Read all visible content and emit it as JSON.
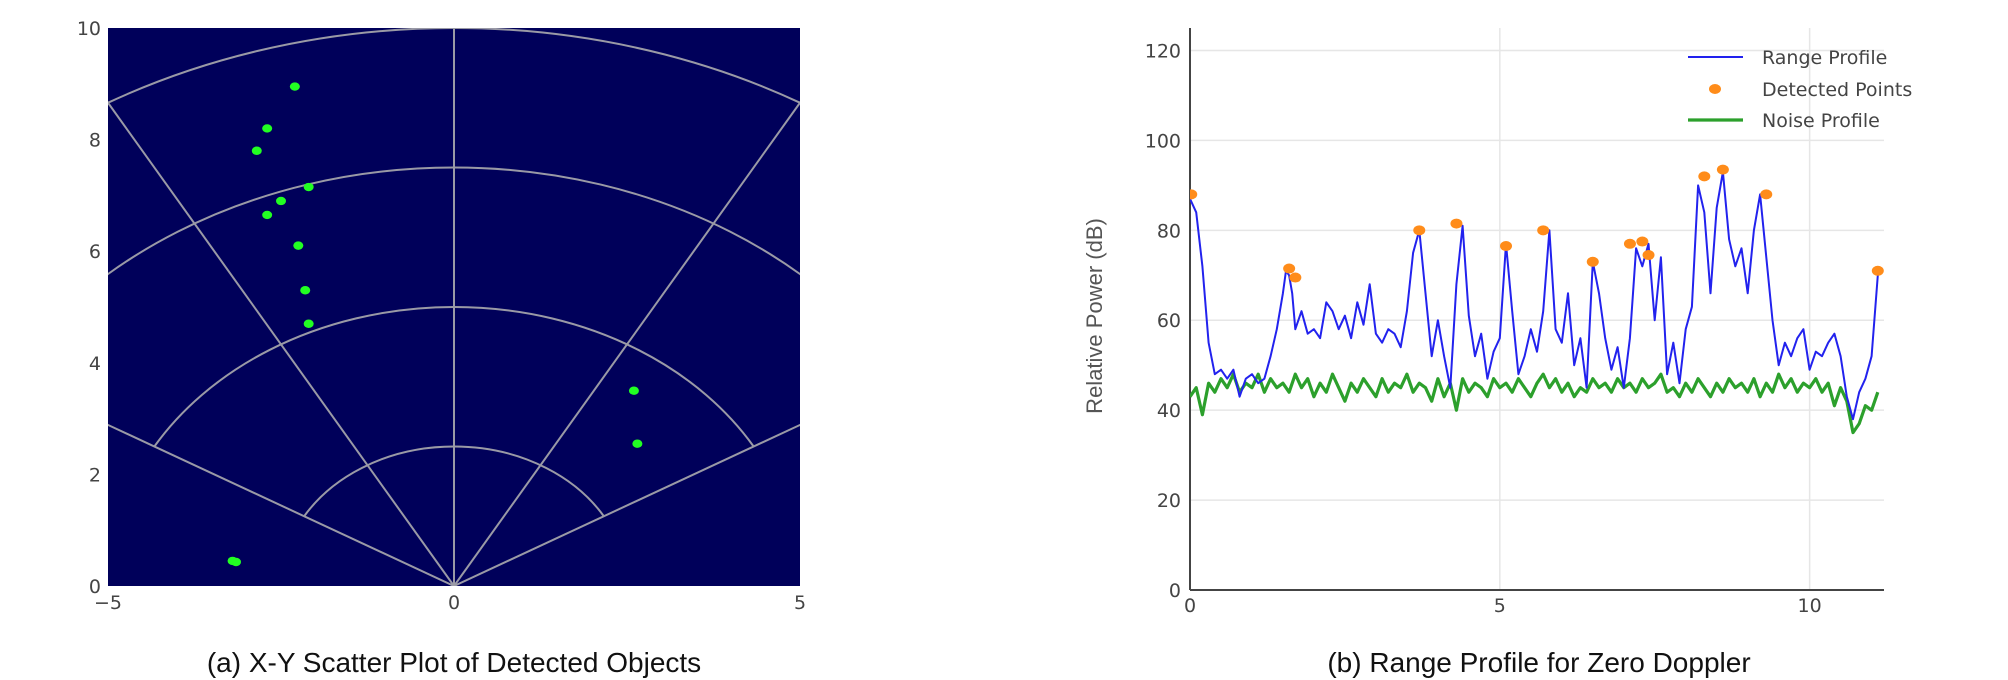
{
  "chart_data": [
    {
      "type": "scatter",
      "subplot": "(a)",
      "caption": "(a) X-Y Scatter Plot of Detected Objects",
      "title": "",
      "xlabel": "",
      "ylabel": "",
      "xlim": [
        -5,
        5
      ],
      "ylim": [
        0,
        10
      ],
      "x_ticks": [
        "−5",
        "0",
        "5"
      ],
      "y_ticks": [
        "0",
        "2",
        "4",
        "6",
        "8",
        "10"
      ],
      "background": "#00005a",
      "grid": "polar range rings and azimuth spokes",
      "range_rings": [
        2.5,
        5,
        7.5,
        10
      ],
      "spoke_angles_deg": [
        -60,
        -30,
        0,
        30,
        60
      ],
      "point_color": "#22ff22",
      "points": [
        {
          "x": -2.3,
          "y": 8.95
        },
        {
          "x": -2.7,
          "y": 8.2
        },
        {
          "x": -2.85,
          "y": 7.8
        },
        {
          "x": -2.1,
          "y": 7.15
        },
        {
          "x": -2.5,
          "y": 6.9
        },
        {
          "x": -2.7,
          "y": 6.65
        },
        {
          "x": -2.25,
          "y": 6.1
        },
        {
          "x": -2.15,
          "y": 5.3
        },
        {
          "x": -2.1,
          "y": 4.7
        },
        {
          "x": 2.6,
          "y": 3.5
        },
        {
          "x": 2.65,
          "y": 2.55
        },
        {
          "x": -3.2,
          "y": 0.45
        },
        {
          "x": -3.15,
          "y": 0.43
        }
      ]
    },
    {
      "type": "line",
      "subplot": "(b)",
      "caption": "(b) Range Profile for Zero Doppler",
      "title": "",
      "xlabel": "",
      "ylabel": "Relative Power (dB)",
      "xlim": [
        0,
        11.2
      ],
      "ylim": [
        0,
        125
      ],
      "x_ticks": [
        0,
        5,
        10
      ],
      "y_ticks": [
        0,
        20,
        40,
        60,
        80,
        100,
        120
      ],
      "grid": true,
      "legend": "top-right",
      "series": [
        {
          "name": "Range Profile",
          "color": "#2222ee",
          "mode": "line",
          "x": [
            0,
            0.1,
            0.2,
            0.3,
            0.4,
            0.5,
            0.6,
            0.7,
            0.8,
            0.9,
            1.0,
            1.1,
            1.2,
            1.3,
            1.4,
            1.5,
            1.55,
            1.6,
            1.65,
            1.7,
            1.8,
            1.9,
            2.0,
            2.1,
            2.2,
            2.3,
            2.4,
            2.5,
            2.6,
            2.7,
            2.8,
            2.9,
            3.0,
            3.1,
            3.2,
            3.3,
            3.4,
            3.5,
            3.6,
            3.7,
            3.8,
            3.9,
            4.0,
            4.1,
            4.2,
            4.3,
            4.4,
            4.5,
            4.6,
            4.7,
            4.8,
            4.9,
            5.0,
            5.1,
            5.2,
            5.3,
            5.4,
            5.5,
            5.6,
            5.7,
            5.8,
            5.9,
            6.0,
            6.1,
            6.2,
            6.3,
            6.4,
            6.5,
            6.6,
            6.7,
            6.8,
            6.9,
            7.0,
            7.1,
            7.2,
            7.3,
            7.4,
            7.5,
            7.6,
            7.7,
            7.8,
            7.9,
            8.0,
            8.1,
            8.2,
            8.3,
            8.4,
            8.5,
            8.6,
            8.7,
            8.8,
            8.9,
            9.0,
            9.1,
            9.2,
            9.3,
            9.4,
            9.5,
            9.6,
            9.7,
            9.8,
            9.9,
            10.0,
            10.1,
            10.2,
            10.3,
            10.4,
            10.5,
            10.6,
            10.7,
            10.8,
            10.9,
            11.0,
            11.1
          ],
          "y": [
            87,
            84,
            72,
            55,
            48,
            49,
            47,
            49,
            43,
            47,
            48,
            46,
            47,
            52,
            58,
            66,
            71,
            70,
            66,
            58,
            62,
            57,
            58,
            56,
            64,
            62,
            58,
            61,
            56,
            64,
            59,
            68,
            57,
            55,
            58,
            57,
            54,
            62,
            75,
            80,
            66,
            52,
            60,
            52,
            45,
            68,
            81,
            61,
            52,
            57,
            47,
            53,
            56,
            77,
            62,
            48,
            52,
            58,
            53,
            62,
            80,
            58,
            55,
            66,
            50,
            56,
            45,
            73,
            66,
            56,
            49,
            54,
            45,
            56,
            76,
            72,
            77,
            60,
            74,
            48,
            55,
            46,
            58,
            63,
            90,
            84,
            66,
            85,
            93,
            78,
            72,
            76,
            66,
            80,
            88,
            74,
            60,
            50,
            55,
            52,
            56,
            58,
            49,
            53,
            52,
            55,
            57,
            52,
            43,
            38,
            44,
            47,
            52,
            70
          ]
        },
        {
          "name": "Detected Points",
          "color": "#ff8c1a",
          "mode": "markers",
          "x": [
            0.02,
            1.6,
            1.7,
            3.7,
            4.3,
            5.1,
            5.7,
            6.5,
            7.1,
            7.3,
            7.4,
            8.3,
            8.6,
            9.3,
            11.1
          ],
          "y": [
            88,
            71.5,
            69.5,
            80,
            81.5,
            76.5,
            80,
            73,
            77,
            77.5,
            74.5,
            92,
            93.5,
            88,
            71
          ]
        },
        {
          "name": "Noise Profile",
          "color": "#2ca02c",
          "mode": "line",
          "x": [
            0,
            0.1,
            0.2,
            0.3,
            0.4,
            0.5,
            0.6,
            0.7,
            0.8,
            0.9,
            1.0,
            1.1,
            1.2,
            1.3,
            1.4,
            1.5,
            1.6,
            1.7,
            1.8,
            1.9,
            2.0,
            2.1,
            2.2,
            2.3,
            2.4,
            2.5,
            2.6,
            2.7,
            2.8,
            2.9,
            3.0,
            3.1,
            3.2,
            3.3,
            3.4,
            3.5,
            3.6,
            3.7,
            3.8,
            3.9,
            4.0,
            4.1,
            4.2,
            4.3,
            4.4,
            4.5,
            4.6,
            4.7,
            4.8,
            4.9,
            5.0,
            5.1,
            5.2,
            5.3,
            5.4,
            5.5,
            5.6,
            5.7,
            5.8,
            5.9,
            6.0,
            6.1,
            6.2,
            6.3,
            6.4,
            6.5,
            6.6,
            6.7,
            6.8,
            6.9,
            7.0,
            7.1,
            7.2,
            7.3,
            7.4,
            7.5,
            7.6,
            7.7,
            7.8,
            7.9,
            8.0,
            8.1,
            8.2,
            8.3,
            8.4,
            8.5,
            8.6,
            8.7,
            8.8,
            8.9,
            9.0,
            9.1,
            9.2,
            9.3,
            9.4,
            9.5,
            9.6,
            9.7,
            9.8,
            9.9,
            10.0,
            10.1,
            10.2,
            10.3,
            10.4,
            10.5,
            10.6,
            10.7,
            10.8,
            10.9,
            11.0,
            11.1
          ],
          "y": [
            43,
            45,
            39,
            46,
            44,
            47,
            45,
            48,
            44,
            46,
            45,
            48,
            44,
            47,
            45,
            46,
            44,
            48,
            45,
            47,
            43,
            46,
            44,
            48,
            45,
            42,
            46,
            44,
            47,
            45,
            43,
            47,
            44,
            46,
            45,
            48,
            44,
            46,
            45,
            42,
            47,
            43,
            46,
            40,
            47,
            44,
            46,
            45,
            43,
            47,
            45,
            46,
            44,
            47,
            45,
            43,
            46,
            48,
            45,
            47,
            44,
            46,
            43,
            45,
            44,
            47,
            45,
            46,
            44,
            47,
            45,
            46,
            44,
            47,
            45,
            46,
            48,
            44,
            45,
            43,
            46,
            44,
            47,
            45,
            43,
            46,
            44,
            47,
            45,
            46,
            44,
            47,
            43,
            46,
            44,
            48,
            45,
            47,
            44,
            46,
            45,
            47,
            44,
            46,
            41,
            45,
            42,
            35,
            37,
            41,
            40,
            44
          ]
        }
      ]
    }
  ]
}
